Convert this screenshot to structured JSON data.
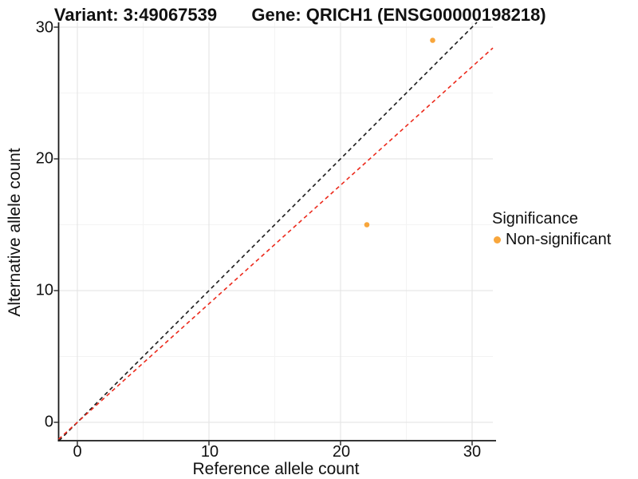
{
  "chart_data": {
    "type": "scatter",
    "titles": {
      "left": "Variant: 3:49067539",
      "right": "Gene: QRICH1 (ENSG00000198218)"
    },
    "xlabel": "Reference allele count",
    "ylabel": "Alternative allele count",
    "x_ticks": [
      0,
      10,
      20,
      30
    ],
    "y_ticks": [
      0,
      10,
      20,
      30
    ],
    "x_minor_ticks": [
      5,
      15,
      25
    ],
    "y_minor_ticks": [
      5,
      15,
      25
    ],
    "xlim": [
      -1.4,
      31.6
    ],
    "ylim": [
      -1.4,
      30.4
    ],
    "grid": true,
    "legend_position": "right",
    "point_color": "#F8A63C",
    "points": [
      {
        "x": 22,
        "y": 15,
        "series": "Non-significant"
      },
      {
        "x": 27,
        "y": 29,
        "series": "Non-significant"
      }
    ],
    "lines": [
      {
        "name": "identity",
        "slope": 1,
        "intercept": 0,
        "color": "#1A1A1A",
        "style": "dashed"
      },
      {
        "name": "allelic-ratio",
        "slope": 0.9,
        "intercept": 0,
        "color": "#EC2A1C",
        "style": "dashed"
      }
    ]
  },
  "legend": {
    "title": "Significance",
    "items": [
      {
        "label": "Non-significant",
        "color": "#F8A63C"
      }
    ]
  }
}
